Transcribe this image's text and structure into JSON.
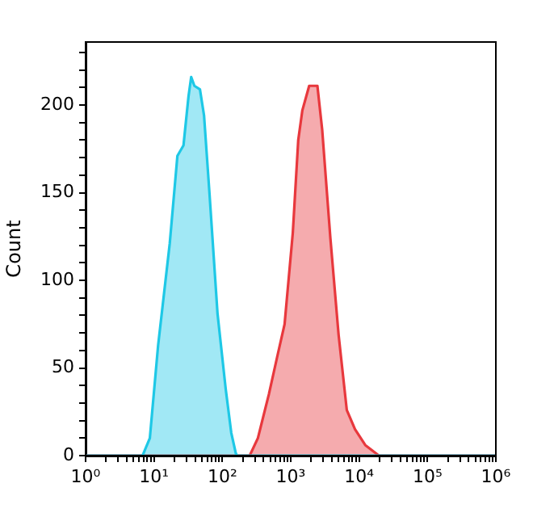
{
  "chart_data": {
    "type": "area",
    "ylabel": "Count",
    "log": "x",
    "xlim": [
      1,
      1000000
    ],
    "ylim": [
      0,
      236
    ],
    "xticks": [
      {
        "value": 1,
        "label": "10⁰"
      },
      {
        "value": 2,
        "label": null
      },
      {
        "value": 3,
        "label": null
      },
      {
        "value": 4,
        "label": null
      },
      {
        "value": 5,
        "label": null
      },
      {
        "value": 6,
        "label": null
      },
      {
        "value": 7,
        "label": null
      },
      {
        "value": 8,
        "label": null
      },
      {
        "value": 9,
        "label": null
      },
      {
        "value": 10,
        "label": "10¹"
      },
      {
        "value": 20,
        "label": null
      },
      {
        "value": 30,
        "label": null
      },
      {
        "value": 40,
        "label": null
      },
      {
        "value": 50,
        "label": null
      },
      {
        "value": 60,
        "label": null
      },
      {
        "value": 70,
        "label": null
      },
      {
        "value": 80,
        "label": null
      },
      {
        "value": 90,
        "label": null
      },
      {
        "value": 100,
        "label": "10²"
      },
      {
        "value": 200,
        "label": null
      },
      {
        "value": 300,
        "label": null
      },
      {
        "value": 400,
        "label": null
      },
      {
        "value": 500,
        "label": null
      },
      {
        "value": 600,
        "label": null
      },
      {
        "value": 700,
        "label": null
      },
      {
        "value": 800,
        "label": null
      },
      {
        "value": 900,
        "label": null
      },
      {
        "value": 1000,
        "label": "10³"
      },
      {
        "value": 2000,
        "label": null
      },
      {
        "value": 3000,
        "label": null
      },
      {
        "value": 4000,
        "label": null
      },
      {
        "value": 5000,
        "label": null
      },
      {
        "value": 6000,
        "label": null
      },
      {
        "value": 7000,
        "label": null
      },
      {
        "value": 8000,
        "label": null
      },
      {
        "value": 9000,
        "label": null
      },
      {
        "value": 10000,
        "label": "10⁴"
      },
      {
        "value": 20000,
        "label": null
      },
      {
        "value": 30000,
        "label": null
      },
      {
        "value": 40000,
        "label": null
      },
      {
        "value": 50000,
        "label": null
      },
      {
        "value": 60000,
        "label": null
      },
      {
        "value": 70000,
        "label": null
      },
      {
        "value": 80000,
        "label": null
      },
      {
        "value": 90000,
        "label": null
      },
      {
        "value": 100000,
        "label": "10⁵"
      },
      {
        "value": 200000,
        "label": null
      },
      {
        "value": 300000,
        "label": null
      },
      {
        "value": 400000,
        "label": null
      },
      {
        "value": 500000,
        "label": null
      },
      {
        "value": 600000,
        "label": null
      },
      {
        "value": 700000,
        "label": null
      },
      {
        "value": 800000,
        "label": null
      },
      {
        "value": 900000,
        "label": null
      },
      {
        "value": 1000000,
        "label": "10⁶"
      }
    ],
    "yticks": [
      0,
      {
        "value": 10,
        "label": null
      },
      {
        "value": 20,
        "label": null
      },
      {
        "value": 30,
        "label": null
      },
      {
        "value": 40,
        "label": null
      },
      50,
      {
        "value": 60,
        "label": null
      },
      {
        "value": 70,
        "label": null
      },
      {
        "value": 80,
        "label": null
      },
      {
        "value": 90,
        "label": null
      },
      100,
      {
        "value": 110,
        "label": null
      },
      {
        "value": 120,
        "label": null
      },
      {
        "value": 130,
        "label": null
      },
      {
        "value": 140,
        "label": null
      },
      150,
      {
        "value": 160,
        "label": null
      },
      {
        "value": 170,
        "label": null
      },
      {
        "value": 180,
        "label": null
      },
      {
        "value": 190,
        "label": null
      },
      200,
      {
        "value": 210,
        "label": null
      },
      {
        "value": 220,
        "label": null
      },
      {
        "value": 230,
        "label": null
      }
    ],
    "series": [
      {
        "color": "#1ec8e6",
        "x": [
          1,
          6.8,
          8.7,
          11.5,
          17,
          22,
          27,
          32,
          35,
          39,
          47,
          54,
          65,
          85,
          112,
          135,
          158,
          160,
          1000000
        ],
        "values": [
          0,
          0,
          10,
          63,
          121,
          171,
          177,
          205,
          216,
          211,
          209,
          194,
          149,
          81,
          38,
          13,
          1,
          0,
          0
        ]
      },
      {
        "color": "#e8383d",
        "x": [
          1,
          251,
          331,
          479,
          631,
          813,
          1072,
          1288,
          1479,
          1862,
          2455,
          2884,
          3802,
          5012,
          6607,
          8710,
          12300,
          19500,
          1000000
        ],
        "values": [
          0,
          0,
          10,
          35,
          56,
          75,
          127,
          180,
          197,
          211,
          211,
          186,
          124,
          69,
          26,
          15,
          6,
          0,
          0
        ]
      }
    ]
  }
}
